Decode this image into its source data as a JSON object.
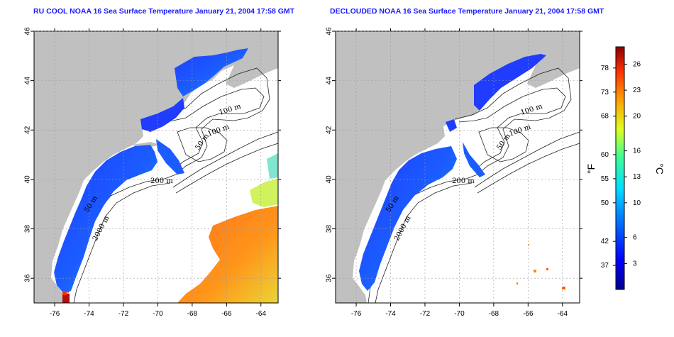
{
  "titles": {
    "left": "RU COOL NOAA 16 Sea Surface Temperature January 21, 2004 17:58 GMT",
    "right": "DECLOUDED NOAA 16 Sea Surface Temperature January 21, 2004 17:58 GMT"
  },
  "map": {
    "lon_ticks": [
      "-76",
      "-74",
      "-72",
      "-70",
      "-68",
      "-66",
      "-64"
    ],
    "lat_ticks": [
      "36",
      "38",
      "40",
      "42",
      "44",
      "46"
    ],
    "lon_range": [
      -77.2,
      -63
    ],
    "lat_range": [
      35,
      46
    ],
    "land_color": "#c0c0c0",
    "ocean_color": "#ffffff",
    "grid": "dotted",
    "contour_labels": [
      "100 m",
      "100 m",
      "50 m",
      "200 m",
      "2000 m",
      "50 m"
    ]
  },
  "colorbar": {
    "fahrenheit_label": "°F",
    "celsius_label": "°C",
    "fahrenheit_ticks": [
      {
        "label": "78",
        "value": 78
      },
      {
        "label": "73",
        "value": 73
      },
      {
        "label": "68",
        "value": 68
      },
      {
        "label": "60",
        "value": 60
      },
      {
        "label": "55",
        "value": 55
      },
      {
        "label": "50",
        "value": 50
      },
      {
        "label": "42",
        "value": 42
      },
      {
        "label": "37",
        "value": 37
      }
    ],
    "celsius_ticks": [
      {
        "label": "26",
        "value": 26
      },
      {
        "label": "23",
        "value": 23
      },
      {
        "label": "20",
        "value": 20
      },
      {
        "label": "16",
        "value": 16
      },
      {
        "label": "13",
        "value": 13
      },
      {
        "label": "10",
        "value": 10
      },
      {
        "label": "6",
        "value": 6
      },
      {
        "label": "3",
        "value": 3
      }
    ],
    "colors": [
      "#00008b",
      "#0000ff",
      "#0080ff",
      "#00e0ff",
      "#40ff90",
      "#e0ff20",
      "#ffa000",
      "#ff3000",
      "#8b0000"
    ]
  }
}
